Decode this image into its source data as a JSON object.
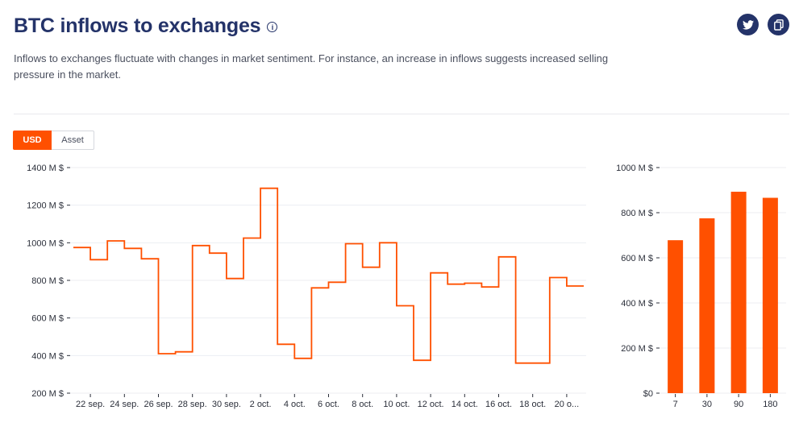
{
  "header": {
    "title": "BTC inflows to exchanges",
    "info_icon": "info-icon",
    "description": "Inflows to exchanges fluctuate with changes in market sentiment. For instance, an increase in inflows suggests increased selling pressure in the market."
  },
  "social": {
    "twitter_icon": "twitter-icon",
    "copy_icon": "copy-icon"
  },
  "toggle": {
    "usd_label": "USD",
    "asset_label": "Asset",
    "selected": "USD"
  },
  "colors": {
    "accent": "#ff5000",
    "title": "#243369",
    "grid": "#eceef2"
  },
  "chart_data": [
    {
      "type": "line",
      "step": true,
      "ylim": [
        200,
        1400
      ],
      "yticks": [
        200,
        400,
        600,
        800,
        1000,
        1200,
        1400
      ],
      "ytick_labels": [
        "200 M $",
        "400 M $",
        "600 M $",
        "800 M $",
        "1000 M $",
        "1200 M $",
        "1400 M $"
      ],
      "xtick_labels": [
        "22 sep.",
        "24 sep.",
        "26 sep.",
        "28 sep.",
        "30 sep.",
        "2 oct.",
        "4 oct.",
        "6 oct.",
        "8 oct.",
        "10 oct.",
        "12 oct.",
        "14 oct.",
        "16 oct.",
        "18 oct.",
        "20 o..."
      ],
      "xlabel": "",
      "ylabel": "",
      "series": [
        {
          "values": [
            975,
            910,
            1010,
            970,
            915,
            410,
            420,
            985,
            945,
            810,
            1025,
            1290,
            460,
            385,
            760,
            790,
            995,
            870,
            1000,
            665,
            375,
            840,
            780,
            785,
            765,
            925,
            360,
            360,
            815,
            770
          ]
        }
      ]
    },
    {
      "type": "bar",
      "categories": [
        "7",
        "30",
        "90",
        "180"
      ],
      "values": [
        678,
        775,
        893,
        866
      ],
      "ylim": [
        0,
        1000
      ],
      "yticks": [
        0,
        200,
        400,
        600,
        800,
        1000
      ],
      "ytick_labels": [
        "$0",
        "200 M $",
        "400 M $",
        "600 M $",
        "800 M $",
        "1000 M $"
      ],
      "xlabel": "",
      "ylabel": ""
    }
  ]
}
